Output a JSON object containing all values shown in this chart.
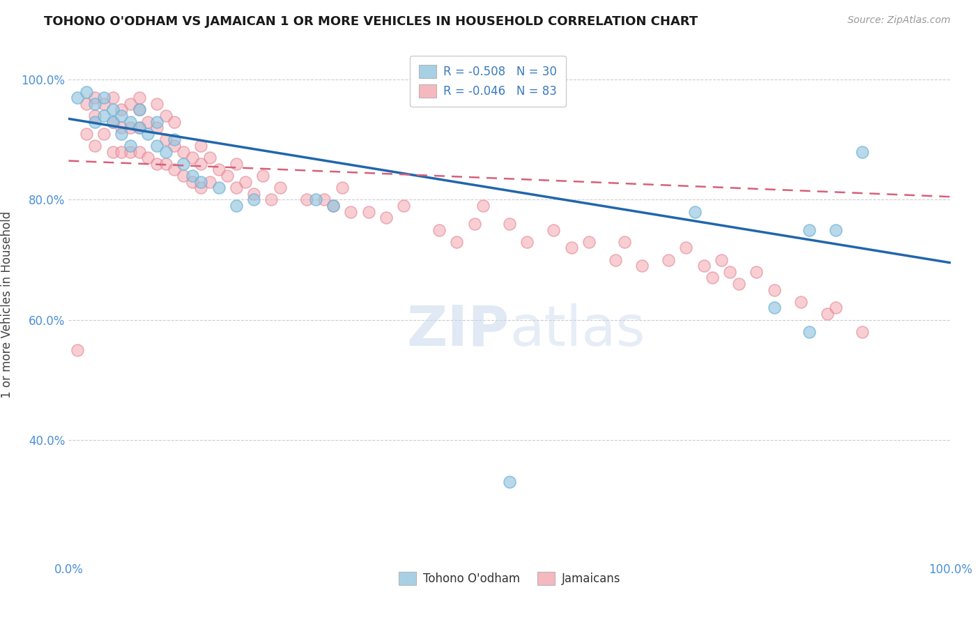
{
  "title": "TOHONO O'ODHAM VS JAMAICAN 1 OR MORE VEHICLES IN HOUSEHOLD CORRELATION CHART",
  "source": "Source: ZipAtlas.com",
  "ylabel": "1 or more Vehicles in Household",
  "xlim": [
    0.0,
    1.0
  ],
  "ylim": [
    0.2,
    1.05
  ],
  "yticks": [
    0.4,
    0.6,
    0.8,
    1.0
  ],
  "ytick_labels": [
    "40.0%",
    "60.0%",
    "80.0%",
    "100.0%"
  ],
  "legend_label_blue": "Tohono O'odham",
  "legend_label_pink": "Jamaicans",
  "blue_color": "#92c5de",
  "pink_color": "#f4a6b0",
  "blue_line_color": "#2166ac",
  "pink_line_color": "#d6607a",
  "blue_marker_edge": "#6baed6",
  "pink_marker_edge": "#e08090",
  "blue_points_x": [
    0.01,
    0.02,
    0.03,
    0.03,
    0.04,
    0.04,
    0.05,
    0.05,
    0.06,
    0.06,
    0.07,
    0.07,
    0.08,
    0.08,
    0.09,
    0.1,
    0.1,
    0.11,
    0.12,
    0.13,
    0.14,
    0.15,
    0.17,
    0.19,
    0.21,
    0.28,
    0.3,
    0.5,
    0.71,
    0.8,
    0.84,
    0.84,
    0.87,
    0.9
  ],
  "blue_points_y": [
    0.97,
    0.98,
    0.93,
    0.96,
    0.94,
    0.97,
    0.93,
    0.95,
    0.91,
    0.94,
    0.89,
    0.93,
    0.92,
    0.95,
    0.91,
    0.89,
    0.93,
    0.88,
    0.9,
    0.86,
    0.84,
    0.83,
    0.82,
    0.79,
    0.8,
    0.8,
    0.79,
    0.33,
    0.78,
    0.62,
    0.58,
    0.75,
    0.75,
    0.88
  ],
  "pink_points_x": [
    0.01,
    0.02,
    0.02,
    0.03,
    0.03,
    0.03,
    0.04,
    0.04,
    0.05,
    0.05,
    0.05,
    0.06,
    0.06,
    0.06,
    0.07,
    0.07,
    0.07,
    0.08,
    0.08,
    0.08,
    0.08,
    0.09,
    0.09,
    0.1,
    0.1,
    0.1,
    0.11,
    0.11,
    0.11,
    0.12,
    0.12,
    0.12,
    0.13,
    0.13,
    0.14,
    0.14,
    0.15,
    0.15,
    0.15,
    0.16,
    0.16,
    0.17,
    0.18,
    0.19,
    0.19,
    0.2,
    0.21,
    0.22,
    0.23,
    0.24,
    0.27,
    0.29,
    0.3,
    0.31,
    0.32,
    0.34,
    0.36,
    0.38,
    0.42,
    0.44,
    0.46,
    0.47,
    0.5,
    0.52,
    0.55,
    0.57,
    0.59,
    0.62,
    0.63,
    0.65,
    0.68,
    0.7,
    0.72,
    0.73,
    0.74,
    0.75,
    0.76,
    0.78,
    0.8,
    0.83,
    0.86,
    0.87,
    0.9
  ],
  "pink_points_y": [
    0.55,
    0.91,
    0.96,
    0.89,
    0.94,
    0.97,
    0.91,
    0.96,
    0.88,
    0.93,
    0.97,
    0.88,
    0.92,
    0.95,
    0.88,
    0.92,
    0.96,
    0.88,
    0.92,
    0.95,
    0.97,
    0.87,
    0.93,
    0.86,
    0.92,
    0.96,
    0.86,
    0.9,
    0.94,
    0.85,
    0.89,
    0.93,
    0.84,
    0.88,
    0.83,
    0.87,
    0.82,
    0.86,
    0.89,
    0.83,
    0.87,
    0.85,
    0.84,
    0.82,
    0.86,
    0.83,
    0.81,
    0.84,
    0.8,
    0.82,
    0.8,
    0.8,
    0.79,
    0.82,
    0.78,
    0.78,
    0.77,
    0.79,
    0.75,
    0.73,
    0.76,
    0.79,
    0.76,
    0.73,
    0.75,
    0.72,
    0.73,
    0.7,
    0.73,
    0.69,
    0.7,
    0.72,
    0.69,
    0.67,
    0.7,
    0.68,
    0.66,
    0.68,
    0.65,
    0.63,
    0.61,
    0.62,
    0.58
  ],
  "blue_line_x0": 0.0,
  "blue_line_y0": 0.935,
  "blue_line_x1": 1.0,
  "blue_line_y1": 0.695,
  "pink_line_x0": 0.0,
  "pink_line_y0": 0.865,
  "pink_line_x1": 1.0,
  "pink_line_y1": 0.805
}
